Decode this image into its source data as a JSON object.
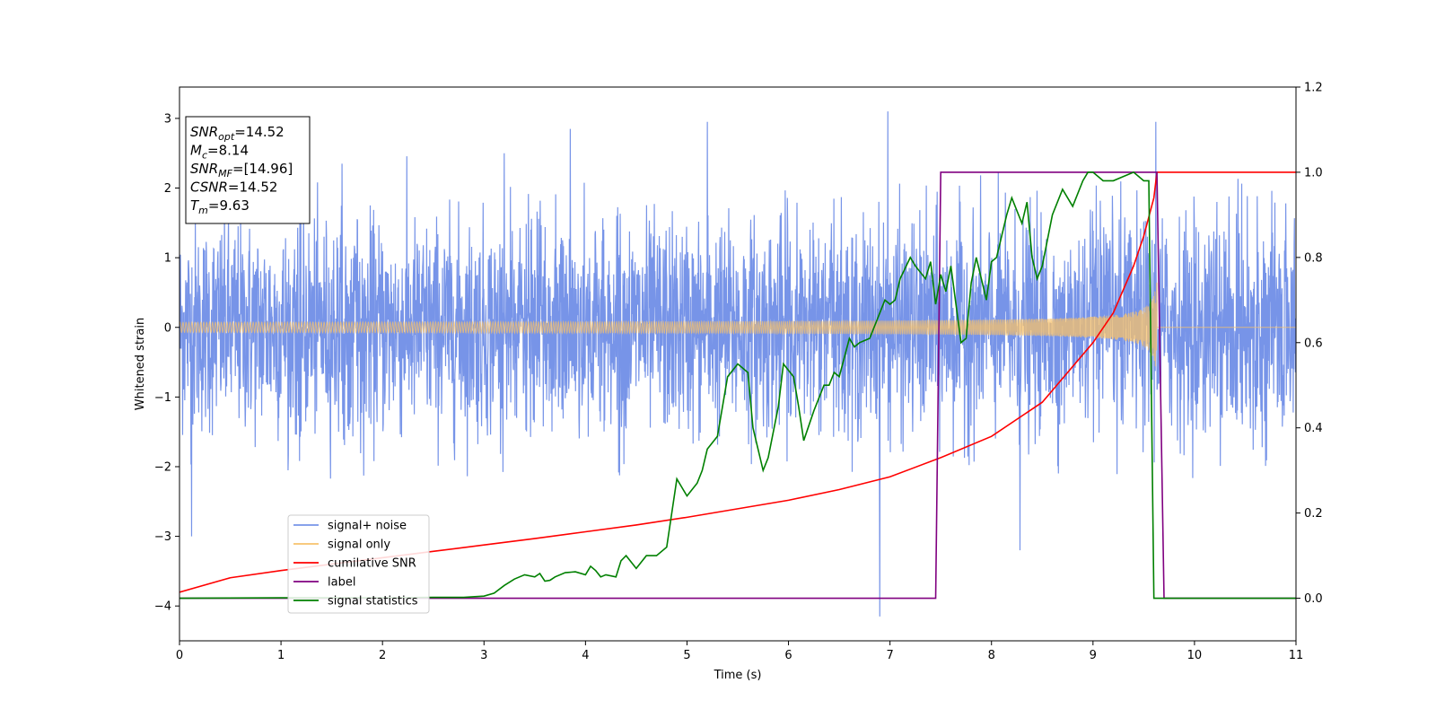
{
  "chart_data": {
    "type": "line",
    "xlabel": "Time (s)",
    "ylabel": "Whitened strain",
    "xlim": [
      0,
      11
    ],
    "ylim": [
      -4.5,
      3.45
    ],
    "y2lim": [
      -0.1,
      1.2
    ],
    "x_ticks": [
      0,
      1,
      2,
      3,
      4,
      5,
      6,
      7,
      8,
      9,
      10,
      11
    ],
    "y_ticks": [
      -4,
      -3,
      -2,
      -1,
      0,
      1,
      2,
      3
    ],
    "y2_ticks": [
      "0.0",
      "0.2",
      "0.4",
      "0.6",
      "0.8",
      "1.0",
      "1.2"
    ],
    "grid": false,
    "legend_position": "lower-left",
    "info_box": {
      "position": "top-left",
      "lines": [
        {
          "base": "SNR",
          "sub": "opt",
          "rest": "=14.52"
        },
        {
          "base": "M",
          "sub": "c",
          "rest": "=8.14"
        },
        {
          "base": "SNR",
          "sub": "MF",
          "rest": "=[14.96]"
        },
        {
          "base": "CSNR",
          "sub": "",
          "rest": "=14.52"
        },
        {
          "base": "T",
          "sub": "m",
          "rest": "=9.63"
        }
      ]
    },
    "series": [
      {
        "name": "signal+ noise",
        "color": "#7794e8",
        "axis": "left",
        "kind": "noise",
        "sigma": 0.75,
        "typical_range": [
          -2.2,
          2.5
        ],
        "extremes": [
          {
            "x": 0.12,
            "y": -3.0
          },
          {
            "x": 1.6,
            "y": 2.35
          },
          {
            "x": 3.2,
            "y": 2.5
          },
          {
            "x": 3.85,
            "y": 2.85
          },
          {
            "x": 5.2,
            "y": 2.95
          },
          {
            "x": 6.9,
            "y": -4.15
          },
          {
            "x": 6.98,
            "y": 3.1
          },
          {
            "x": 8.28,
            "y": -3.2
          },
          {
            "x": 9.62,
            "y": 2.95
          }
        ]
      },
      {
        "name": "signal only",
        "color": "#f7c26b",
        "axis": "left",
        "kind": "chirp",
        "merger_time": 9.63,
        "amplitude_start": 0.05,
        "amplitude_end": 0.75
      },
      {
        "name": "cumilative SNR",
        "color": "#ff0000",
        "axis": "right",
        "x": [
          0,
          0.5,
          1,
          1.5,
          2,
          2.5,
          3,
          3.5,
          4,
          4.5,
          5,
          5.5,
          6,
          6.5,
          7,
          7.5,
          8,
          8.5,
          9,
          9.2,
          9.4,
          9.5,
          9.6,
          9.63,
          11
        ],
        "y": [
          0.014,
          0.048,
          0.065,
          0.08,
          0.095,
          0.11,
          0.125,
          0.14,
          0.156,
          0.172,
          0.19,
          0.21,
          0.23,
          0.255,
          0.285,
          0.33,
          0.38,
          0.46,
          0.6,
          0.67,
          0.78,
          0.85,
          0.94,
          1.0,
          1.0
        ]
      },
      {
        "name": "label",
        "color": "#800080",
        "axis": "right",
        "x": [
          0,
          7.45,
          7.5,
          9.63,
          9.7,
          11
        ],
        "y": [
          0,
          0,
          1,
          1,
          0,
          0
        ]
      },
      {
        "name": "signal statistics",
        "color": "#008000",
        "axis": "right",
        "x": [
          0,
          1,
          2,
          2.5,
          2.8,
          3.0,
          3.1,
          3.2,
          3.3,
          3.4,
          3.5,
          3.55,
          3.6,
          3.65,
          3.7,
          3.8,
          3.9,
          4.0,
          4.05,
          4.1,
          4.15,
          4.2,
          4.3,
          4.35,
          4.4,
          4.5,
          4.6,
          4.7,
          4.8,
          4.9,
          4.95,
          5.0,
          5.1,
          5.15,
          5.2,
          5.3,
          5.4,
          5.5,
          5.6,
          5.65,
          5.7,
          5.75,
          5.8,
          5.9,
          5.95,
          6.05,
          6.1,
          6.15,
          6.25,
          6.3,
          6.35,
          6.4,
          6.45,
          6.5,
          6.6,
          6.65,
          6.7,
          6.8,
          6.85,
          6.95,
          7.0,
          7.05,
          7.1,
          7.2,
          7.25,
          7.35,
          7.4,
          7.45,
          7.5,
          7.55,
          7.6,
          7.7,
          7.75,
          7.8,
          7.85,
          7.95,
          8.0,
          8.05,
          8.15,
          8.2,
          8.3,
          8.35,
          8.4,
          8.45,
          8.5,
          8.6,
          8.7,
          8.8,
          8.9,
          8.95,
          9.0,
          9.1,
          9.2,
          9.3,
          9.4,
          9.45,
          9.5,
          9.55,
          9.6,
          9.65,
          9.7,
          11
        ],
        "y": [
          0,
          0.001,
          0.001,
          0.002,
          0.002,
          0.005,
          0.012,
          0.03,
          0.045,
          0.055,
          0.05,
          0.058,
          0.04,
          0.042,
          0.05,
          0.06,
          0.062,
          0.055,
          0.075,
          0.065,
          0.05,
          0.055,
          0.05,
          0.088,
          0.1,
          0.07,
          0.1,
          0.1,
          0.12,
          0.28,
          0.26,
          0.24,
          0.27,
          0.3,
          0.35,
          0.38,
          0.52,
          0.55,
          0.53,
          0.4,
          0.35,
          0.3,
          0.33,
          0.45,
          0.55,
          0.52,
          0.45,
          0.37,
          0.44,
          0.47,
          0.5,
          0.5,
          0.53,
          0.52,
          0.61,
          0.59,
          0.6,
          0.61,
          0.64,
          0.7,
          0.69,
          0.7,
          0.75,
          0.8,
          0.78,
          0.75,
          0.79,
          0.69,
          0.76,
          0.72,
          0.78,
          0.6,
          0.61,
          0.74,
          0.8,
          0.7,
          0.79,
          0.8,
          0.9,
          0.94,
          0.88,
          0.93,
          0.8,
          0.75,
          0.78,
          0.9,
          0.96,
          0.92,
          0.98,
          1.0,
          1.0,
          0.98,
          0.98,
          0.99,
          1.0,
          0.99,
          0.98,
          0.98,
          0.0,
          0.0,
          0.0,
          0.0
        ]
      }
    ]
  }
}
